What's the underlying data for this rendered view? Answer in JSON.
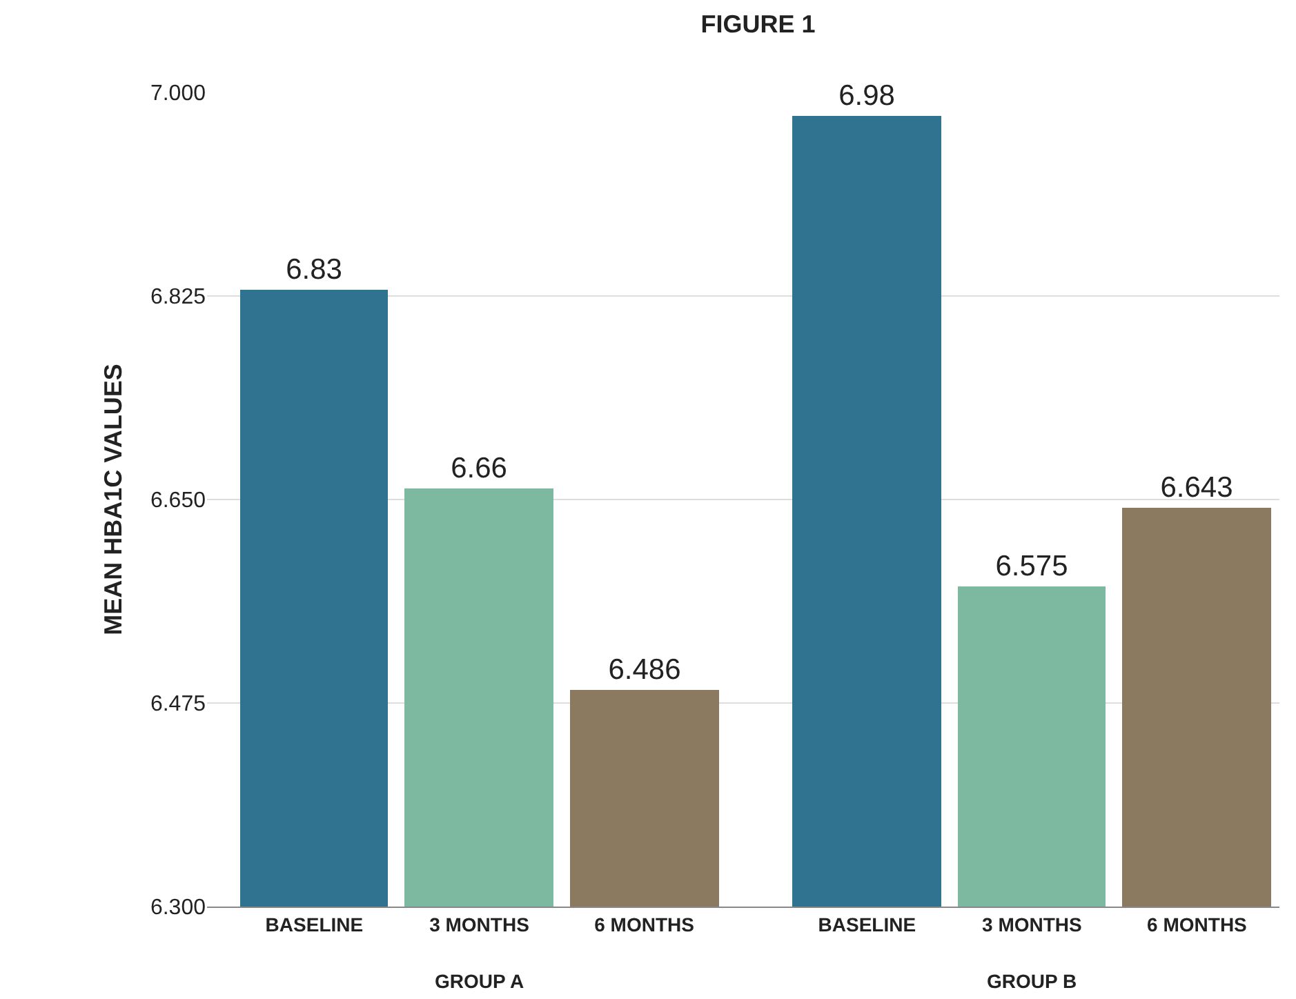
{
  "chart_data": {
    "type": "bar",
    "title": "FIGURE 1",
    "ylabel": "MEAN HBA1C VALUES",
    "categories": [
      "BASELINE",
      "3 MONTHS",
      "6 MONTHS",
      "BASELINE",
      "3 MONTHS",
      "6 MONTHS"
    ],
    "values": [
      6.83,
      6.66,
      6.486,
      6.98,
      6.575,
      6.643
    ],
    "colors": [
      "#2f7391",
      "#7db8a0",
      "#8b7a5f",
      "#2f7391",
      "#7db8a0",
      "#8b7a5f"
    ],
    "ylim": [
      6.3,
      7.0
    ],
    "yticks": [
      {
        "value": 6.3,
        "label": "6.300"
      },
      {
        "value": 6.475,
        "label": "6.475"
      },
      {
        "value": 6.65,
        "label": "6.650"
      },
      {
        "value": 6.825,
        "label": "6.825"
      },
      {
        "value": 7.0,
        "label": "7.000"
      }
    ],
    "grid": "y",
    "data_labels": true,
    "annotations": [
      "GROUP A",
      "GROUP B"
    ]
  }
}
